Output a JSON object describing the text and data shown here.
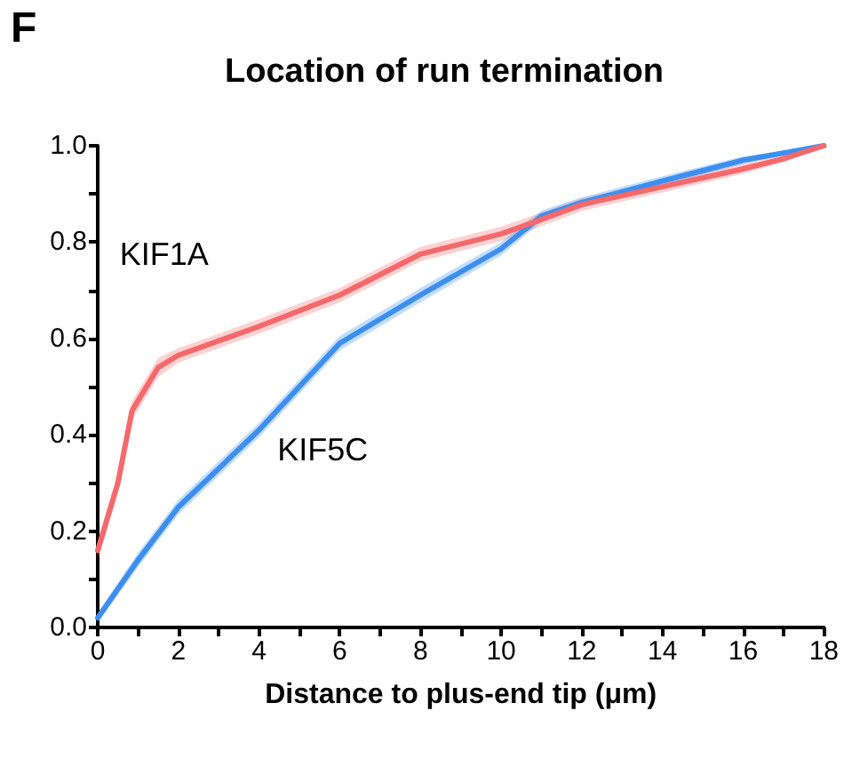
{
  "chart_data": {
    "type": "line",
    "title": "Location of run termination",
    "xlabel": "Distance to plus-end tip (μm)",
    "annotations": [
      "F"
    ],
    "series": [
      {
        "name": "KIF1A",
        "color": "#f4696b",
        "x": [
          0,
          0.5,
          0.85,
          1.5,
          2,
          4,
          6,
          8,
          10,
          11,
          12,
          14,
          16,
          17,
          18
        ],
        "values": [
          0.16,
          0.3,
          0.45,
          0.54,
          0.565,
          0.625,
          0.69,
          0.775,
          0.817,
          0.847,
          0.878,
          0.915,
          0.952,
          0.973,
          1.0
        ],
        "lower": [
          0.14,
          0.28,
          0.43,
          0.52,
          0.55,
          0.61,
          0.675,
          0.76,
          0.802,
          0.833,
          0.865,
          0.903,
          0.942,
          0.966,
          1.0
        ],
        "upper": [
          0.18,
          0.32,
          0.47,
          0.56,
          0.58,
          0.64,
          0.705,
          0.79,
          0.832,
          0.861,
          0.891,
          0.927,
          0.962,
          0.98,
          1.0
        ]
      },
      {
        "name": "KIF5C",
        "color": "#3d8fef",
        "x": [
          0,
          1,
          2,
          4,
          6,
          8,
          10,
          11,
          12,
          14,
          16,
          17,
          18
        ],
        "values": [
          0.02,
          0.14,
          0.25,
          0.41,
          0.59,
          0.69,
          0.786,
          0.854,
          0.882,
          0.927,
          0.97,
          0.985,
          1.0
        ],
        "lower": [
          0.01,
          0.125,
          0.235,
          0.395,
          0.575,
          0.675,
          0.772,
          0.842,
          0.871,
          0.917,
          0.962,
          0.98,
          1.0
        ],
        "upper": [
          0.03,
          0.155,
          0.265,
          0.425,
          0.605,
          0.705,
          0.8,
          0.866,
          0.893,
          0.937,
          0.978,
          0.99,
          1.0
        ]
      }
    ],
    "xlim": [
      0,
      18
    ],
    "xticks": [
      0,
      {
        "value": 1,
        "label": null
      },
      2,
      {
        "value": 3,
        "label": null
      },
      4,
      {
        "value": 5,
        "label": null
      },
      6,
      {
        "value": 7,
        "label": null
      },
      8,
      {
        "value": 9,
        "label": null
      },
      10,
      {
        "value": 11,
        "label": null
      },
      12,
      {
        "value": 13,
        "label": null
      },
      14,
      {
        "value": 15,
        "label": null
      },
      16,
      {
        "value": 17,
        "label": null
      },
      18
    ],
    "ylim": [
      0,
      1
    ],
    "yticks": [
      {
        "value": 0,
        "label": "0.0"
      },
      {
        "value": 0.1,
        "label": null
      },
      0.2,
      {
        "value": 0.3,
        "label": null
      },
      0.4,
      {
        "value": 0.5,
        "label": null
      },
      0.6,
      {
        "value": 0.7,
        "label": null
      },
      0.8,
      {
        "value": 0.9,
        "label": null
      },
      {
        "value": 1,
        "label": "1.0"
      }
    ],
    "grid": false,
    "legend": false,
    "marker": "none",
    "line_style": "solid"
  }
}
